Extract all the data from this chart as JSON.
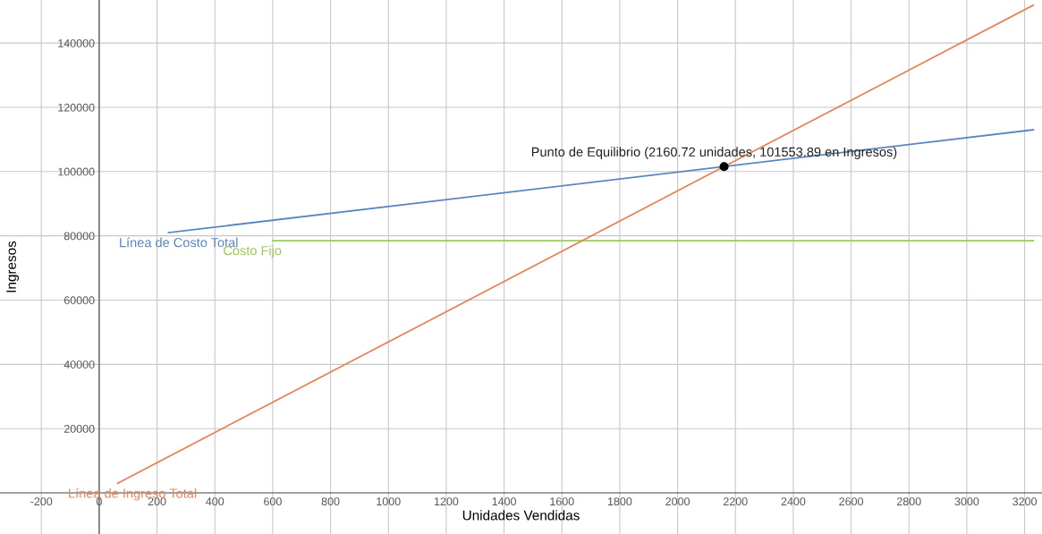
{
  "chart_data": {
    "type": "line",
    "xlabel": "Unidades Vendidas",
    "ylabel": "Ingresos",
    "series": [
      {
        "name": "Línea de Costo Total",
        "color": "#5a86bf",
        "x": [
          240,
          3230
        ],
        "values": [
          81000,
          113000
        ]
      },
      {
        "name": "Costo Fijo",
        "color": "#9cc85c",
        "x": [
          600,
          3230
        ],
        "values": [
          78500,
          78500
        ]
      },
      {
        "name": "Línea de Ingreso Total",
        "color": "#e8845a",
        "x": [
          64,
          3230
        ],
        "values": [
          3000,
          151800
        ]
      },
      {
        "type": "scatter",
        "color": "#000000",
        "x": [
          2160.72
        ],
        "values": [
          101553.89
        ]
      }
    ],
    "annotations": [
      {
        "text": "Punto de Equilibrio (2160.72 unidades, 101553.89 en Ingresos)",
        "x": 2160.72,
        "y": 101553.89
      }
    ],
    "xlim": [
      -343,
      3260
    ],
    "ylim": [
      -12800,
      153400
    ],
    "xticks": [
      -200,
      0,
      200,
      400,
      600,
      800,
      1000,
      1200,
      1400,
      1600,
      1800,
      2000,
      2200,
      2400,
      2600,
      2800,
      3000,
      3200
    ],
    "yticks": [
      20000,
      40000,
      60000,
      80000,
      100000,
      120000,
      140000
    ],
    "grid": true,
    "line_style": "solid"
  }
}
